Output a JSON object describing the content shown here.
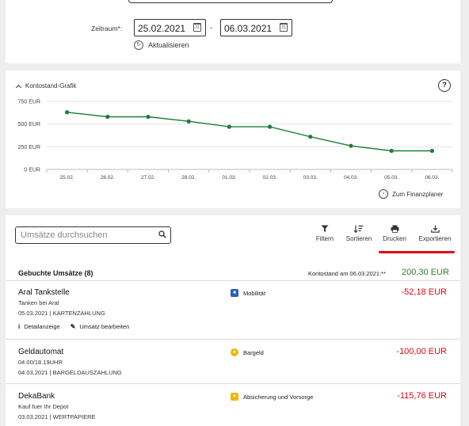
{
  "filters": {
    "zeitraum_label": "Zeitraum*:",
    "date_from": "25.02.2021",
    "date_to": "06.03.2021",
    "date_separator": "-",
    "refresh_label": "Aktualisieren"
  },
  "chart_section": {
    "title": "Kontostand-Grafik",
    "help": "?",
    "link_label": "Zum Finanzplaner"
  },
  "chart_data": {
    "type": "line",
    "categories": [
      "25.02.",
      "26.02.",
      "27.02.",
      "28.02.",
      "01.03.",
      "02.03.",
      "03.03.",
      "04.03.",
      "05.03.",
      "06.03."
    ],
    "values": [
      630,
      580,
      580,
      530,
      470,
      470,
      360,
      260,
      205,
      205
    ],
    "y_ticks": [
      "0 EUR",
      "250 EUR",
      "500 EUR",
      "750 EUR"
    ],
    "ylim": [
      0,
      750
    ],
    "color": "#1e7d3c",
    "grid": "horizontal"
  },
  "toolbar": {
    "search_placeholder": "Umsätze durchsuchen",
    "filter_label": "Filtern",
    "sort_label": "Sortieren",
    "print_label": "Drucken",
    "export_label": "Exportieren"
  },
  "booked": {
    "title": "Gebuchte Umsätze (8)",
    "balance_label": "Kontostand am 06.03.2021:**",
    "balance_amount": "200,30 EUR"
  },
  "transactions": [
    {
      "name": "Aral Tankstelle",
      "line1": "Tanken bei Aral",
      "line2": "05.03.2021 | KARTENZAHLUNG",
      "category": "Mobilität",
      "amount": "-52,18 EUR",
      "action_details": "Detailanzeige",
      "action_edit": "Umsatz bearbeiten"
    },
    {
      "name": "Geldautomat",
      "line1": "04.00/18.19UHR",
      "line2": "04.03.2021 | BARGELDAUSZAHLUNG",
      "category": "Bargeld",
      "amount": "-100,00 EUR"
    },
    {
      "name": "DekaBank",
      "line1": "Kauf fuer Ihr Depot",
      "line2": "03.03.2021 | WERTPAPIERE",
      "category": "Absicherung und Vorsorge",
      "amount": "-115,76 EUR"
    }
  ]
}
